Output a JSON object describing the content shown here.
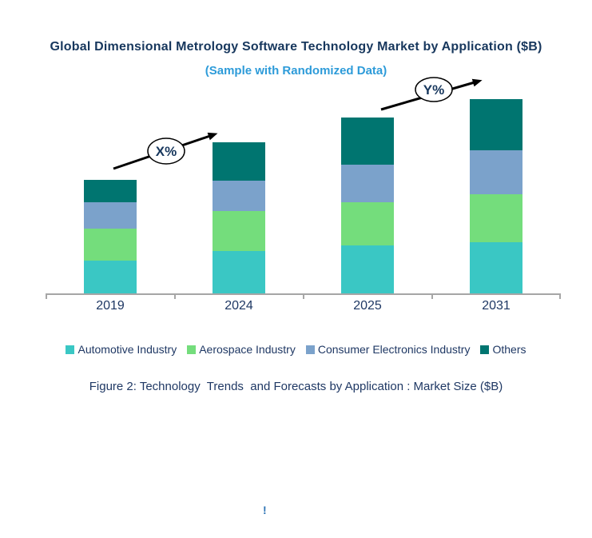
{
  "header": {
    "title": "Global Dimensional Metrology Software Technology Market by Application ($B)",
    "subtitle": "(Sample with Randomized Data)",
    "title_color": "#17375D",
    "subtitle_color": "#2D9BD9"
  },
  "chart_data": {
    "type": "bar",
    "stacked": true,
    "title": "Global Dimensional Metrology Software Technology Market by Application ($B)",
    "subtitle": "(Sample with Randomized Data)",
    "categories": [
      "2019",
      "2024",
      "2025",
      "2031"
    ],
    "series": [
      {
        "name": "Automotive Industry",
        "color": "#3AC7C4",
        "values": [
          4.2,
          5.4,
          6.1,
          6.5
        ]
      },
      {
        "name": "Aerospace Industry",
        "color": "#74DD7C",
        "values": [
          4.0,
          5.0,
          5.4,
          6.0
        ]
      },
      {
        "name": "Consumer Electronics Industry",
        "color": "#7BA2CB",
        "values": [
          3.3,
          3.8,
          4.7,
          5.5
        ]
      },
      {
        "name": "Others",
        "color": "#007570",
        "values": [
          2.8,
          4.8,
          5.9,
          6.4
        ]
      }
    ],
    "totals": [
      14.3,
      19.0,
      22.1,
      24.4
    ],
    "xlabel": "",
    "ylabel": "",
    "ylim": [
      0,
      26
    ],
    "y_axis_visible": false,
    "grid": false,
    "legend_position": "bottom",
    "axis_line_color": "#A6A6A6",
    "axis_label_color": "#1F3864"
  },
  "annotations": {
    "growth_1": "X%",
    "growth_2": "Y%"
  },
  "caption": "Figure 2: Technology  Trends  and Forecasts by Application : Market Size ($B)",
  "footer_mark": "!"
}
